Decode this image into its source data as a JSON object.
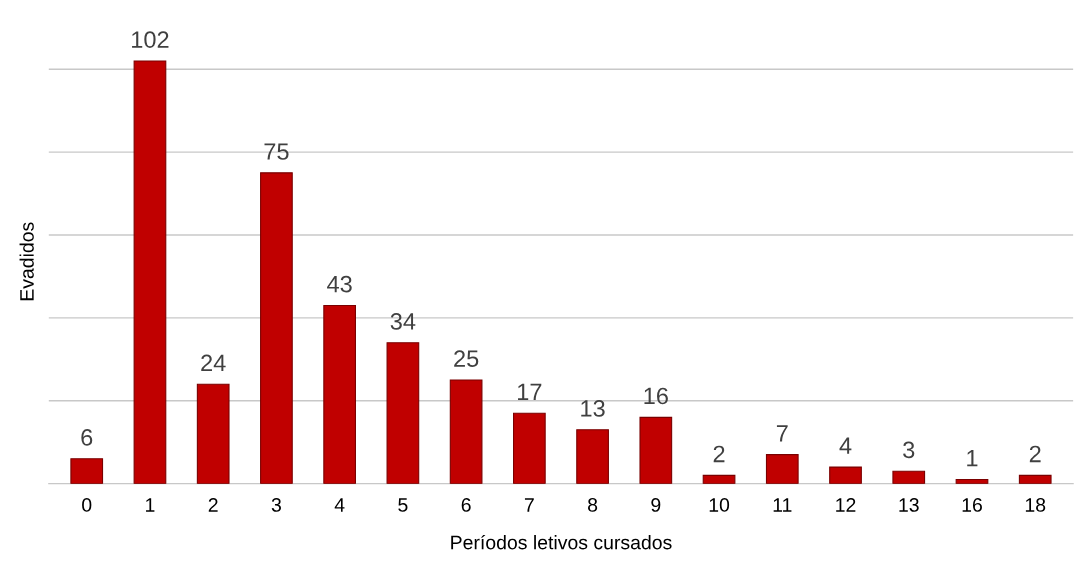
{
  "chart_data": {
    "type": "bar",
    "xlabel": "Períodos letivos cursados",
    "ylabel": "Evadidos",
    "categories": [
      "0",
      "1",
      "2",
      "3",
      "4",
      "5",
      "6",
      "7",
      "8",
      "9",
      "10",
      "11",
      "12",
      "13",
      "16",
      "18"
    ],
    "values": [
      6,
      102,
      24,
      75,
      43,
      34,
      25,
      17,
      13,
      16,
      2,
      7,
      4,
      3,
      1,
      2
    ],
    "color": "#c00000",
    "data_labels": true,
    "grid": "y",
    "tick_labels": "x",
    "yticks": [
      {
        "value": 0,
        "label": null
      },
      {
        "value": 20,
        "label": null
      },
      {
        "value": 40,
        "label": null
      },
      {
        "value": 60,
        "label": null
      },
      {
        "value": 80,
        "label": null
      },
      {
        "value": 100,
        "label": null
      }
    ]
  }
}
